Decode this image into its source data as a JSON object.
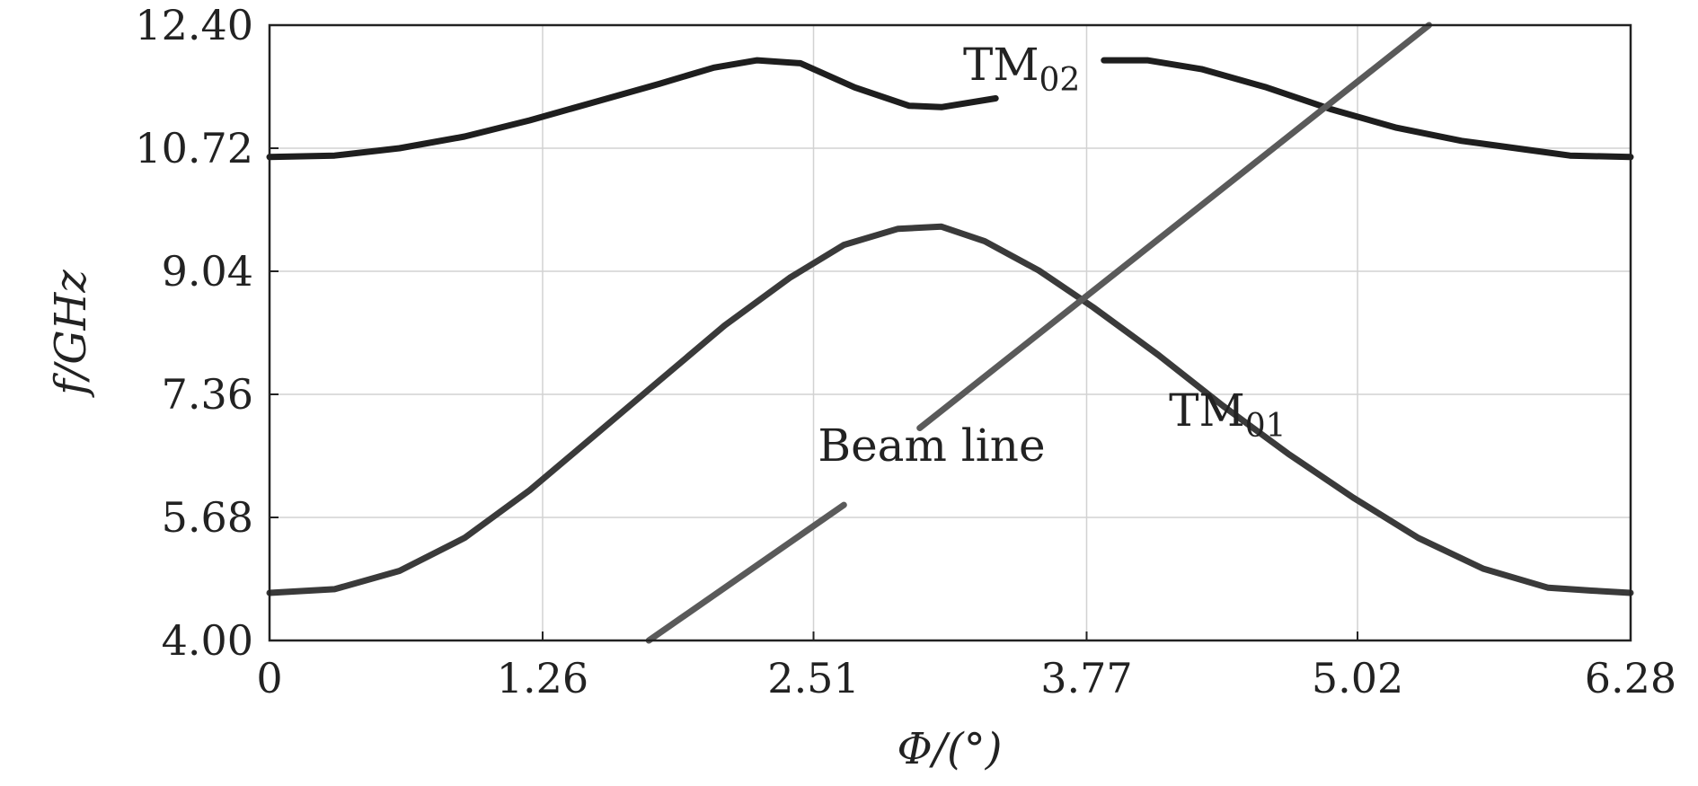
{
  "chart_data": {
    "type": "line",
    "xlabel": "Φ/(°)",
    "ylabel": "f/GHz",
    "xlim": [
      0,
      6.28
    ],
    "ylim": [
      4.0,
      12.4
    ],
    "xticks": [
      "0",
      "1.26",
      "2.51",
      "3.77",
      "5.02",
      "6.28"
    ],
    "yticks": [
      "12.40",
      "10.72",
      "9.04",
      "7.36",
      "5.68",
      "4.00"
    ],
    "grid": true,
    "series": [
      {
        "name": "TM02",
        "color": "#1e1e1e",
        "segments": [
          {
            "x": [
              0,
              0.3,
              0.6,
              0.9,
              1.2,
              1.5,
              1.8,
              2.05,
              2.25,
              2.45,
              2.7,
              2.95,
              3.1,
              3.35
            ],
            "y": [
              10.6,
              10.62,
              10.72,
              10.88,
              11.1,
              11.35,
              11.6,
              11.82,
              11.92,
              11.88,
              11.55,
              11.3,
              11.28,
              11.4
            ]
          },
          {
            "x": [
              3.85,
              4.05,
              4.3,
              4.6,
              4.9,
              5.2,
              5.5,
              5.8,
              6.0,
              6.28
            ],
            "y": [
              11.92,
              11.92,
              11.8,
              11.55,
              11.25,
              11.0,
              10.82,
              10.7,
              10.62,
              10.6
            ]
          }
        ]
      },
      {
        "name": "TM01",
        "color": "#3a3a3a",
        "segments": [
          {
            "x": [
              0,
              0.3,
              0.6,
              0.9,
              1.2,
              1.5,
              1.8,
              2.1,
              2.4,
              2.65,
              2.9,
              3.1,
              3.3,
              3.55,
              3.8,
              4.1,
              4.4,
              4.7,
              5.0,
              5.3,
              5.6,
              5.9,
              6.1,
              6.28
            ],
            "y": [
              4.65,
              4.7,
              4.95,
              5.4,
              6.05,
              6.8,
              7.55,
              8.3,
              8.95,
              9.4,
              9.62,
              9.65,
              9.45,
              9.05,
              8.55,
              7.9,
              7.2,
              6.55,
              5.95,
              5.4,
              4.98,
              4.72,
              4.68,
              4.65
            ]
          }
        ]
      },
      {
        "name": "Beam line",
        "color": "#5a5a5a",
        "segments": [
          {
            "x": [
              1.75,
              2.65
            ],
            "y": [
              4.0,
              5.85
            ]
          },
          {
            "x": [
              3.0,
              5.35
            ],
            "y": [
              6.9,
              12.4
            ]
          }
        ]
      }
    ],
    "annotations": [
      {
        "text": "TM",
        "sub": "02",
        "x": 3.2,
        "y": 11.65
      },
      {
        "text": "TM",
        "sub": "01",
        "x": 4.15,
        "y": 6.93
      },
      {
        "text": "Beam line",
        "x": 2.53,
        "y": 6.45
      }
    ]
  }
}
